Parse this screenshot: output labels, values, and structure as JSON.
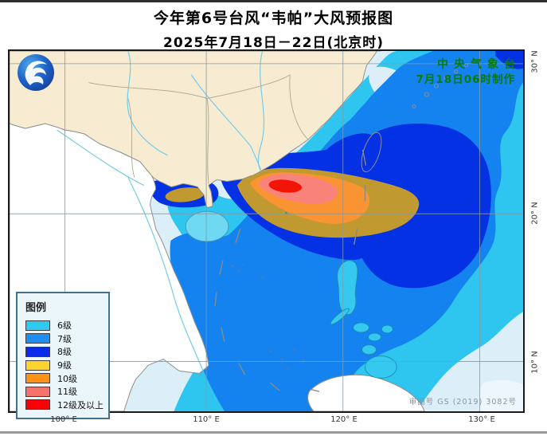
{
  "title": {
    "line1": "今年第6号台风“韦帕”大风预报图",
    "line2": "2025年7月18日－22日(北京时)"
  },
  "producer": {
    "line1": "中央气象台",
    "line2": "7月18日06时制作",
    "color": "#0a7a0a"
  },
  "review_number": "审图号 GS (2019) 3082号",
  "axes": {
    "longitude": [
      "100° E",
      "110° E",
      "120° E",
      "130° E"
    ],
    "latitude": [
      "30° N",
      "20° N",
      "10° N"
    ]
  },
  "legend": {
    "title": "图例",
    "items": [
      {
        "label": "6级",
        "color": "#30C9F0"
      },
      {
        "label": "7级",
        "color": "#1E8FF0"
      },
      {
        "label": "8级",
        "color": "#0A2BE8"
      },
      {
        "label": "9级",
        "color": "#FFD22E"
      },
      {
        "label": "10级",
        "color": "#FF9018"
      },
      {
        "label": "11级",
        "color": "#F4736B"
      },
      {
        "label": "12级及以上",
        "color": "#FB0007"
      }
    ]
  },
  "map_zones": {
    "base_sea": "#DCEFF9",
    "level6": "#2EC5EF",
    "level7": "#1483EF",
    "level8": "#0531E4",
    "level9_on_map": "#C09A30",
    "level10_on_map": "#FA9432",
    "level11_on_map": "#F9837B",
    "level12_on_map": "#F11407",
    "china_land": "#F7ECD2",
    "foreign_land": "#FFFFFF"
  },
  "typhoon": {
    "number": "第6号",
    "name": "韦帕"
  }
}
